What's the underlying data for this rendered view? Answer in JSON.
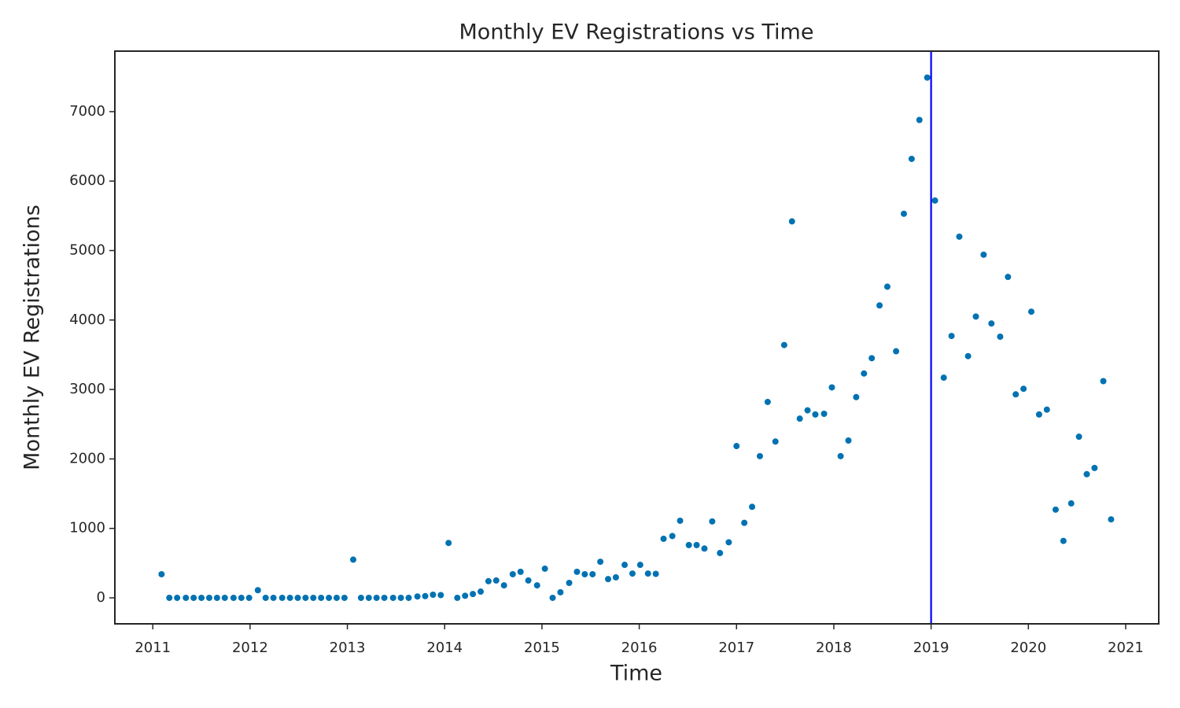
{
  "chart_data": {
    "type": "scatter",
    "title": "Monthly EV Registrations vs Time",
    "x_label": "Time",
    "y_label": "Monthly EV Registrations",
    "xlim": [
      2010.61,
      2021.34
    ],
    "xticks": [
      2011,
      2012,
      2013,
      2014,
      2015,
      2016,
      2017,
      2018,
      2019,
      2020,
      2021
    ],
    "ylim": [
      -374,
      7871
    ],
    "yticks": [
      0,
      1000,
      2000,
      3000,
      4000,
      5000,
      6000,
      7000
    ],
    "grid": false,
    "reference_line": {
      "x": 2019,
      "color": "#0000ff"
    },
    "series": [
      {
        "color": "#0072b2",
        "x": [
          2011.09,
          2011.17,
          2011.25,
          2011.34,
          2011.42,
          2011.5,
          2011.58,
          2011.66,
          2011.74,
          2011.83,
          2011.91,
          2011.99,
          2012.08,
          2012.16,
          2012.24,
          2012.33,
          2012.41,
          2012.49,
          2012.57,
          2012.65,
          2012.73,
          2012.81,
          2012.89,
          2012.97,
          2013.06,
          2013.14,
          2013.22,
          2013.3,
          2013.38,
          2013.47,
          2013.55,
          2013.63,
          2013.72,
          2013.8,
          2013.88,
          2013.96,
          2014.04,
          2014.13,
          2014.21,
          2014.29,
          2014.37,
          2014.45,
          2014.53,
          2014.61,
          2014.7,
          2014.78,
          2014.86,
          2014.95,
          2015.03,
          2015.11,
          2015.19,
          2015.28,
          2015.36,
          2015.44,
          2015.52,
          2015.6,
          2015.68,
          2015.76,
          2015.85,
          2015.93,
          2016.01,
          2016.09,
          2016.17,
          2016.25,
          2016.34,
          2016.42,
          2016.51,
          2016.59,
          2016.67,
          2016.75,
          2016.83,
          2016.92,
          2017.0,
          2017.08,
          2017.16,
          2017.24,
          2017.32,
          2017.4,
          2017.49,
          2017.57,
          2017.65,
          2017.73,
          2017.81,
          2017.9,
          2017.98,
          2018.07,
          2018.15,
          2018.23,
          2018.31,
          2018.39,
          2018.47,
          2018.55,
          2018.64,
          2018.72,
          2018.8,
          2018.88,
          2018.96,
          2019.04,
          2019.13,
          2019.21,
          2019.29,
          2019.38,
          2019.46,
          2019.54,
          2019.62,
          2019.71,
          2019.79,
          2019.87,
          2019.95,
          2020.03,
          2020.11,
          2020.19,
          2020.28,
          2020.36,
          2020.44,
          2020.52,
          2020.6,
          2020.68,
          2020.77,
          2020.85
        ],
        "values": [
          340,
          0,
          0,
          0,
          0,
          0,
          0,
          0,
          0,
          0,
          0,
          0,
          110,
          0,
          0,
          0,
          0,
          0,
          0,
          0,
          0,
          0,
          0,
          0,
          550,
          0,
          0,
          0,
          0,
          0,
          0,
          0,
          20,
          25,
          45,
          40,
          790,
          0,
          30,
          55,
          90,
          240,
          250,
          180,
          340,
          375,
          250,
          180,
          420,
          0,
          80,
          215,
          375,
          340,
          340,
          520,
          270,
          295,
          475,
          350,
          475,
          350,
          345,
          850,
          890,
          1110,
          760,
          760,
          710,
          1100,
          645,
          800,
          2185,
          1080,
          1310,
          2040,
          2820,
          2250,
          3640,
          5420,
          2580,
          2700,
          2640,
          2650,
          3030,
          2040,
          2265,
          2890,
          3230,
          3450,
          4210,
          4480,
          3550,
          5530,
          6320,
          6880,
          7490,
          5720,
          3170,
          3770,
          5200,
          3480,
          4050,
          4940,
          3950,
          3760,
          4620,
          2930,
          3010,
          4120,
          2640,
          2710,
          1270,
          820,
          1360,
          2320,
          1780,
          1870,
          3120,
          1130
        ]
      }
    ]
  }
}
